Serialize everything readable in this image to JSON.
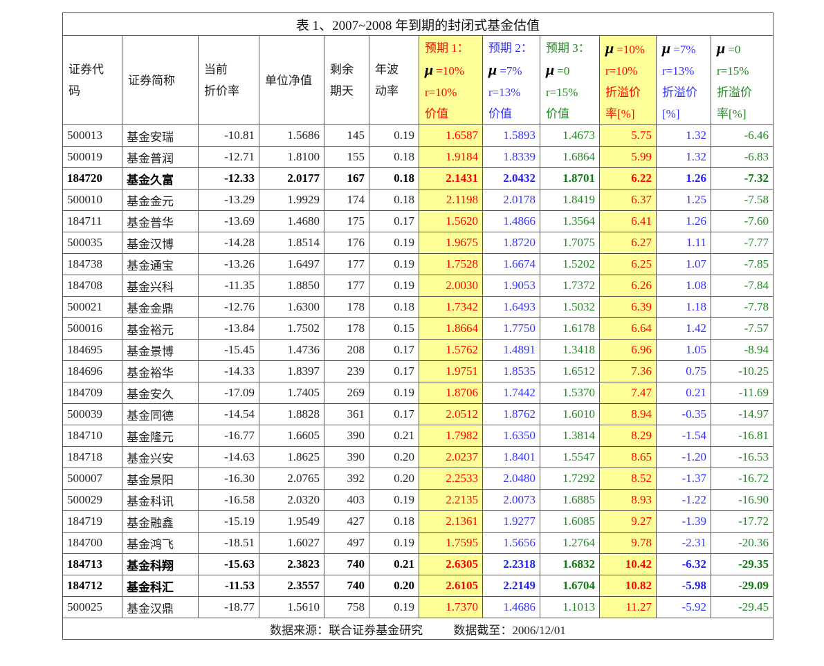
{
  "title": "表 1、2007~2008 年到期的封闭式基金估值",
  "colors": {
    "scenario1": "#ff0000",
    "scenario2": "#3333ff",
    "scenario3": "#228822",
    "highlight": "#ffff99"
  },
  "headers": [
    [
      "证券代",
      "码"
    ],
    [
      "证券简称"
    ],
    [
      "当前",
      "折价率"
    ],
    [
      "单位净值"
    ],
    [
      "剩余",
      "期天"
    ],
    [
      "年波",
      "动率"
    ],
    [
      "预期 1：",
      "μ=10%",
      "r=10%",
      "价值"
    ],
    [
      "预期 2：",
      "μ=7%",
      "r=13%",
      "价值"
    ],
    [
      "预期 3：",
      "μ=0",
      "r=15%",
      "价值"
    ],
    [
      "μ=10%",
      "r=10%",
      "折溢价",
      "率[%]"
    ],
    [
      "μ=7%",
      "r=13%",
      "折溢价",
      "[%]"
    ],
    [
      "μ=0",
      "r=15%",
      "折溢价",
      "率[%]"
    ]
  ],
  "rows": [
    {
      "bold": false,
      "cells": [
        "500013",
        "基金安瑞",
        "-10.81",
        "1.5686",
        "145",
        "0.19",
        "1.6587",
        "1.5893",
        "1.4673",
        "5.75",
        "1.32",
        "-6.46"
      ]
    },
    {
      "bold": false,
      "cells": [
        "500019",
        "基金普润",
        "-12.71",
        "1.8100",
        "155",
        "0.18",
        "1.9184",
        "1.8339",
        "1.6864",
        "5.99",
        "1.32",
        "-6.83"
      ]
    },
    {
      "bold": true,
      "cells": [
        "184720",
        "基金久富",
        "-12.33",
        "2.0177",
        "167",
        "0.18",
        "2.1431",
        "2.0432",
        "1.8701",
        "6.22",
        "1.26",
        "-7.32"
      ]
    },
    {
      "bold": false,
      "cells": [
        "500010",
        "基金金元",
        "-13.29",
        "1.9929",
        "174",
        "0.18",
        "2.1198",
        "2.0178",
        "1.8419",
        "6.37",
        "1.25",
        "-7.58"
      ]
    },
    {
      "bold": false,
      "cells": [
        "184711",
        "基金普华",
        "-13.69",
        "1.4680",
        "175",
        "0.17",
        "1.5620",
        "1.4866",
        "1.3564",
        "6.41",
        "1.26",
        "-7.60"
      ]
    },
    {
      "bold": false,
      "cells": [
        "500035",
        "基金汉博",
        "-14.28",
        "1.8514",
        "176",
        "0.19",
        "1.9675",
        "1.8720",
        "1.7075",
        "6.27",
        "1.11",
        "-7.77"
      ]
    },
    {
      "bold": false,
      "cells": [
        "184738",
        "基金通宝",
        "-13.26",
        "1.6497",
        "177",
        "0.19",
        "1.7528",
        "1.6674",
        "1.5202",
        "6.25",
        "1.07",
        "-7.85"
      ]
    },
    {
      "bold": false,
      "cells": [
        "184708",
        "基金兴科",
        "-11.35",
        "1.8850",
        "177",
        "0.19",
        "2.0030",
        "1.9053",
        "1.7372",
        "6.26",
        "1.08",
        "-7.84"
      ]
    },
    {
      "bold": false,
      "cells": [
        "500021",
        "基金金鼎",
        "-12.76",
        "1.6300",
        "178",
        "0.18",
        "1.7342",
        "1.6493",
        "1.5032",
        "6.39",
        "1.18",
        "-7.78"
      ]
    },
    {
      "bold": false,
      "cells": [
        "500016",
        "基金裕元",
        "-13.84",
        "1.7502",
        "178",
        "0.15",
        "1.8664",
        "1.7750",
        "1.6178",
        "6.64",
        "1.42",
        "-7.57"
      ]
    },
    {
      "bold": false,
      "cells": [
        "184695",
        "基金景博",
        "-15.45",
        "1.4736",
        "208",
        "0.17",
        "1.5762",
        "1.4891",
        "1.3418",
        "6.96",
        "1.05",
        "-8.94"
      ]
    },
    {
      "bold": false,
      "cells": [
        "184696",
        "基金裕华",
        "-14.33",
        "1.8397",
        "239",
        "0.17",
        "1.9751",
        "1.8535",
        "1.6512",
        "7.36",
        "0.75",
        "-10.25"
      ]
    },
    {
      "bold": false,
      "cells": [
        "184709",
        "基金安久",
        "-17.09",
        "1.7405",
        "269",
        "0.19",
        "1.8706",
        "1.7442",
        "1.5370",
        "7.47",
        "0.21",
        "-11.69"
      ]
    },
    {
      "bold": false,
      "cells": [
        "500039",
        "基金同德",
        "-14.54",
        "1.8828",
        "361",
        "0.17",
        "2.0512",
        "1.8762",
        "1.6010",
        "8.94",
        "-0.35",
        "-14.97"
      ]
    },
    {
      "bold": false,
      "cells": [
        "184710",
        "基金隆元",
        "-16.77",
        "1.6605",
        "390",
        "0.21",
        "1.7982",
        "1.6350",
        "1.3814",
        "8.29",
        "-1.54",
        "-16.81"
      ]
    },
    {
      "bold": false,
      "cells": [
        "184718",
        "基金兴安",
        "-14.63",
        "1.8625",
        "390",
        "0.20",
        "2.0237",
        "1.8401",
        "1.5547",
        "8.65",
        "-1.20",
        "-16.53"
      ]
    },
    {
      "bold": false,
      "cells": [
        "500007",
        "基金景阳",
        "-16.30",
        "2.0765",
        "392",
        "0.20",
        "2.2533",
        "2.0480",
        "1.7292",
        "8.52",
        "-1.37",
        "-16.72"
      ]
    },
    {
      "bold": false,
      "cells": [
        "500029",
        "基金科讯",
        "-16.58",
        "2.0320",
        "403",
        "0.19",
        "2.2135",
        "2.0073",
        "1.6885",
        "8.93",
        "-1.22",
        "-16.90"
      ]
    },
    {
      "bold": false,
      "cells": [
        "184719",
        "基金融鑫",
        "-15.19",
        "1.9549",
        "427",
        "0.18",
        "2.1361",
        "1.9277",
        "1.6085",
        "9.27",
        "-1.39",
        "-17.72"
      ]
    },
    {
      "bold": false,
      "cells": [
        "184700",
        "基金鸿飞",
        "-18.51",
        "1.6027",
        "497",
        "0.19",
        "1.7595",
        "1.5656",
        "1.2764",
        "9.78",
        "-2.31",
        "-20.36"
      ]
    },
    {
      "bold": true,
      "cells": [
        "184713",
        "基金科翔",
        "-15.63",
        "2.3823",
        "740",
        "0.21",
        "2.6305",
        "2.2318",
        "1.6832",
        "10.42",
        "-6.32",
        "-29.35"
      ]
    },
    {
      "bold": true,
      "cells": [
        "184712",
        "基金科汇",
        "-11.53",
        "2.3557",
        "740",
        "0.20",
        "2.6105",
        "2.2149",
        "1.6704",
        "10.82",
        "-5.98",
        "-29.09"
      ]
    },
    {
      "bold": false,
      "cells": [
        "500025",
        "基金汉鼎",
        "-18.77",
        "1.5610",
        "758",
        "0.19",
        "1.7370",
        "1.4686",
        "1.1013",
        "11.27",
        "-5.92",
        "-29.45"
      ]
    }
  ],
  "footer": {
    "source": "数据来源：联合证券基金研究",
    "date": "数据截至：2006/12/01"
  }
}
